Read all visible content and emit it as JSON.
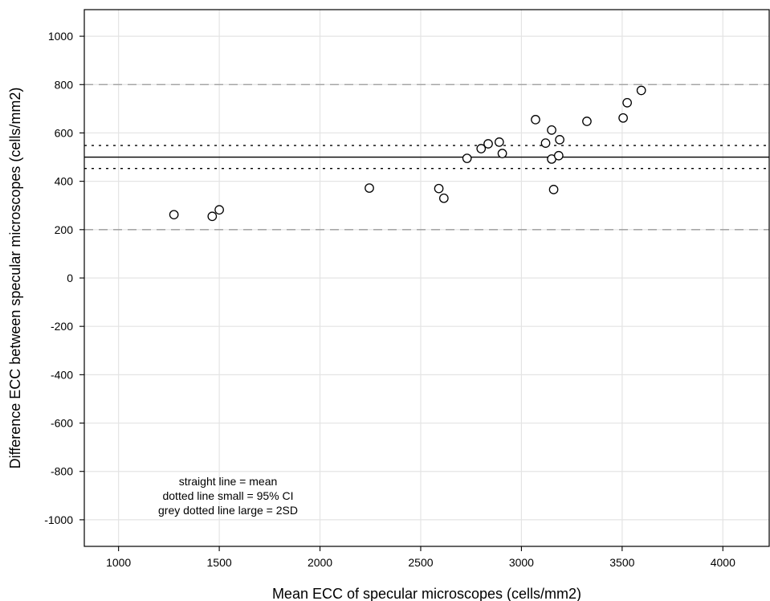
{
  "chart_data": {
    "type": "scatter",
    "title": "",
    "xlabel": "Mean ECC of specular microscopes (cells/mm2)",
    "ylabel": "Difference ECC between specular microscopes (cells/mm2)",
    "xlim": [
      830,
      4230
    ],
    "ylim": [
      -1110,
      1110
    ],
    "xticks": [
      1000,
      1500,
      2000,
      2500,
      3000,
      3500,
      4000
    ],
    "yticks": [
      1000,
      800,
      600,
      400,
      200,
      0,
      -200,
      -400,
      -600,
      -800,
      -1000
    ],
    "grid": true,
    "reference_lines": {
      "mean": 500,
      "ci_lower": 453,
      "ci_upper": 548,
      "sd2_lower": 200,
      "sd2_upper": 800
    },
    "annotation": [
      "straight line = mean",
      "dotted line small = 95% CI",
      "grey dotted line large = 2SD"
    ],
    "points": [
      {
        "x": 1275,
        "y": 262
      },
      {
        "x": 1465,
        "y": 255
      },
      {
        "x": 1500,
        "y": 282
      },
      {
        "x": 2245,
        "y": 372
      },
      {
        "x": 2590,
        "y": 370
      },
      {
        "x": 2615,
        "y": 330
      },
      {
        "x": 2730,
        "y": 495
      },
      {
        "x": 2800,
        "y": 535
      },
      {
        "x": 2835,
        "y": 555
      },
      {
        "x": 2890,
        "y": 562
      },
      {
        "x": 2905,
        "y": 515
      },
      {
        "x": 3070,
        "y": 655
      },
      {
        "x": 3120,
        "y": 558
      },
      {
        "x": 3150,
        "y": 612
      },
      {
        "x": 3150,
        "y": 492
      },
      {
        "x": 3160,
        "y": 366
      },
      {
        "x": 3185,
        "y": 506
      },
      {
        "x": 3190,
        "y": 572
      },
      {
        "x": 3325,
        "y": 648
      },
      {
        "x": 3505,
        "y": 662
      },
      {
        "x": 3525,
        "y": 725
      },
      {
        "x": 3595,
        "y": 776
      }
    ]
  }
}
